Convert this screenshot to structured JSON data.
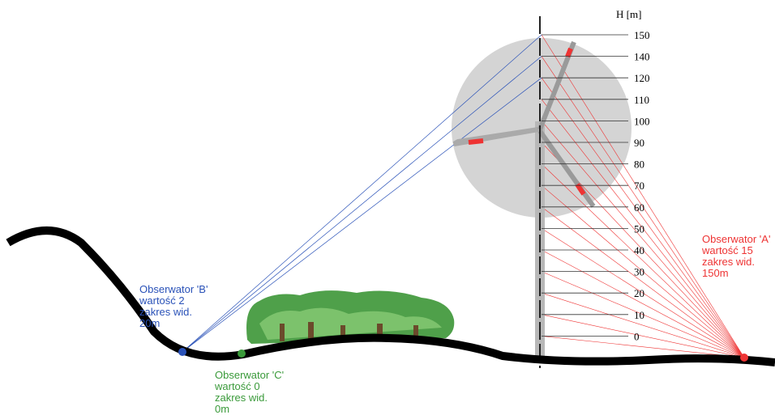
{
  "scale": {
    "unit": "H [m]",
    "labels": [
      150,
      140,
      120,
      110,
      100,
      90,
      80,
      70,
      60,
      50,
      40,
      30,
      20,
      10,
      0
    ]
  },
  "observers": [
    {
      "lines": [
        "Obserwator 'A'",
        "wartość 15",
        "zakres wid.",
        "150m"
      ]
    },
    {
      "lines": [
        "Obserwator 'B'",
        "wartość 2",
        "zakres wid.",
        "20m"
      ]
    },
    {
      "lines": [
        "Obserwator 'C'",
        "wartość 0",
        "zakres wid.",
        "0m"
      ]
    }
  ]
}
